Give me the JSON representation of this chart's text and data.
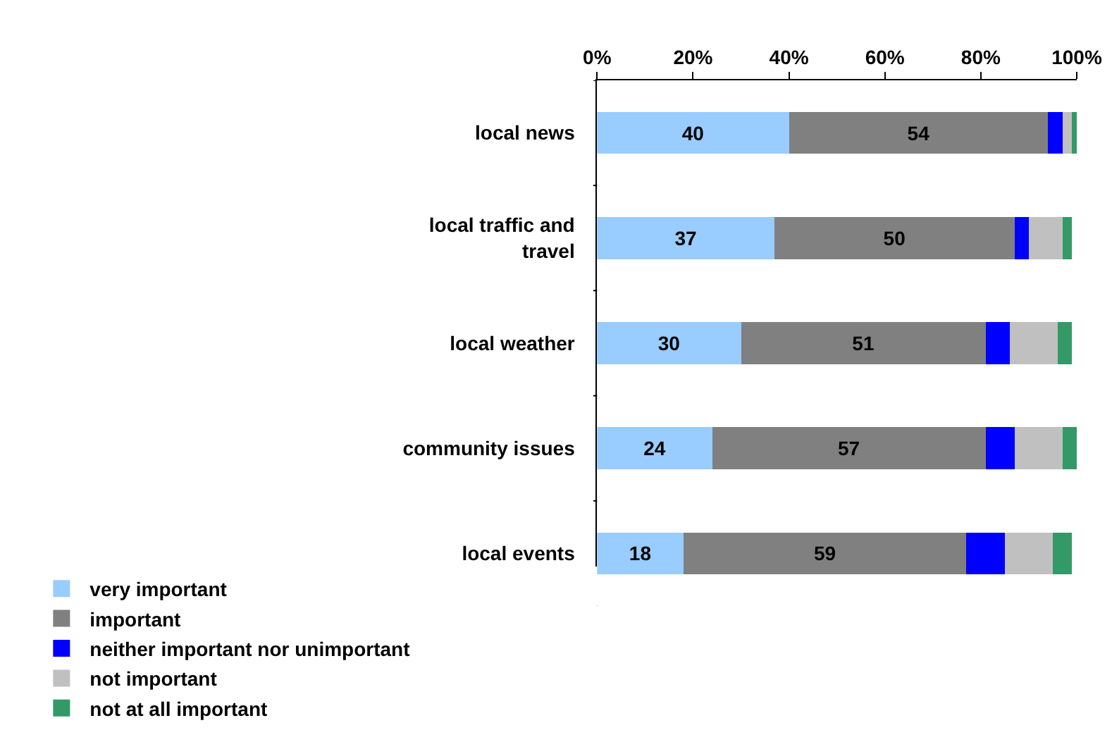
{
  "chart_data": {
    "type": "bar",
    "orientation": "horizontal",
    "stacked": true,
    "categories": [
      "local news",
      "local traffic and travel",
      "local weather",
      "community issues",
      "local events"
    ],
    "series": [
      {
        "name": "very important",
        "color": "#99ccff",
        "values": [
          40,
          37,
          30,
          24,
          18
        ],
        "value_labels": [
          "40",
          "37",
          "30",
          "24",
          "18"
        ]
      },
      {
        "name": "important",
        "color": "#808080",
        "values": [
          54,
          50,
          51,
          57,
          59
        ],
        "value_labels": [
          "54",
          "50",
          "51",
          "57",
          "59"
        ]
      },
      {
        "name": "neither important nor unimportant",
        "color": "#0000ff",
        "values": [
          3,
          3,
          5,
          6,
          8
        ]
      },
      {
        "name": "not important",
        "color": "#c0c0c0",
        "values": [
          2,
          7,
          10,
          10,
          10
        ]
      },
      {
        "name": "not at all important",
        "color": "#339966",
        "values": [
          1,
          2,
          3,
          3,
          4
        ]
      }
    ],
    "xlim": [
      0,
      100
    ],
    "xticks": [
      {
        "value": 0,
        "label": "0%"
      },
      {
        "value": 20,
        "label": "20%"
      },
      {
        "value": 40,
        "label": "40%"
      },
      {
        "value": 60,
        "label": "60%"
      },
      {
        "value": 80,
        "label": "80%"
      },
      {
        "value": 100,
        "label": "100%"
      }
    ],
    "grid": false,
    "legend": "bottom"
  }
}
